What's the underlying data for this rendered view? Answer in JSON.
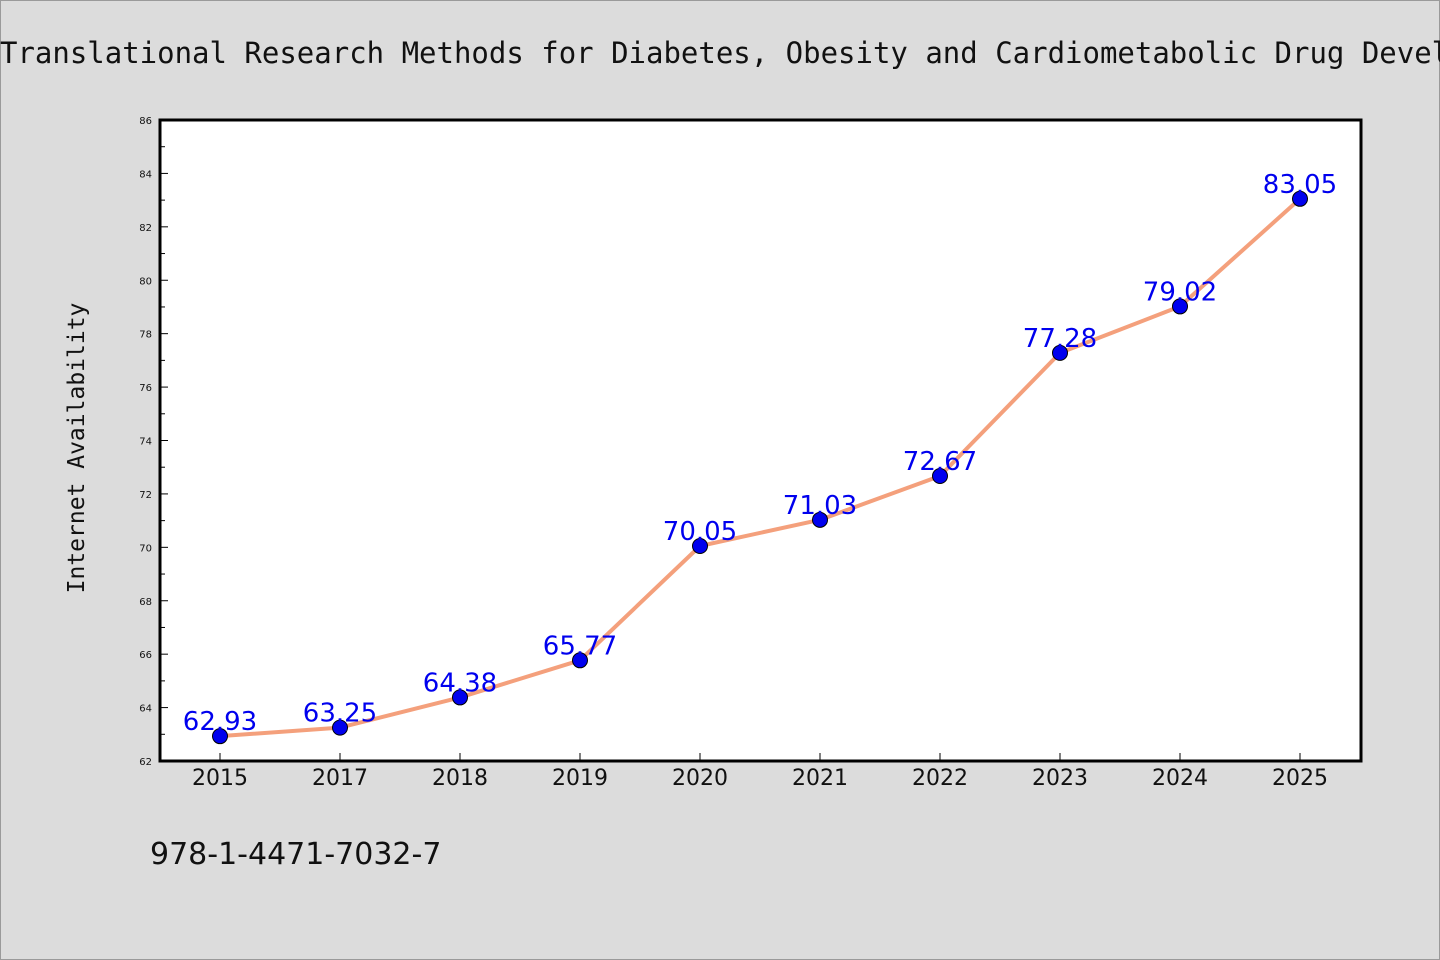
{
  "chart_data": {
    "type": "line",
    "title": "Translational Research Methods for Diabetes, Obesity and Cardiometabolic Drug Development",
    "xlabel": "",
    "ylabel": "Internet Availability",
    "categories": [
      "2015",
      "2017",
      "2018",
      "2019",
      "2020",
      "2021",
      "2022",
      "2023",
      "2024",
      "2025"
    ],
    "series": [
      {
        "values": [
          62.93,
          63.25,
          64.38,
          65.77,
          70.05,
          71.03,
          72.67,
          77.28,
          79.02,
          83.05
        ],
        "data_labels": [
          "62.93",
          "63.25",
          "64.38",
          "65.77",
          "70.05",
          "71.03",
          "72.67",
          "77.28",
          "79.02",
          "83.05"
        ]
      }
    ],
    "ylim": [
      62,
      86
    ],
    "yticks": [
      "62",
      "64",
      "66",
      "68",
      "70",
      "72",
      "74",
      "76",
      "78",
      "80",
      "82",
      "84",
      "86"
    ],
    "grid": false,
    "legend": "none",
    "colors": {
      "line": "#f4a07c",
      "marker": "#0000ee",
      "data_label": "#0000ee",
      "background": "#dcdcdc",
      "plot_background": "#ffffff"
    }
  },
  "footer": {
    "text": "978-1-4471-7032-7"
  }
}
